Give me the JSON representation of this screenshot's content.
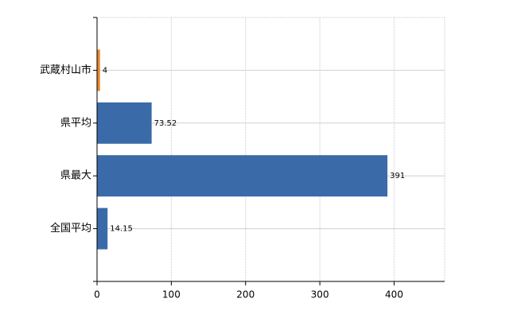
{
  "chart_data": {
    "type": "bar",
    "orientation": "horizontal",
    "categories": [
      "武蔵村山市",
      "県平均",
      "県最大",
      "全国平均"
    ],
    "values": [
      4,
      73.52,
      391,
      14.15
    ],
    "colors": [
      "#e8862f",
      "#3a6aa8",
      "#3a6aa8",
      "#3a6aa8"
    ],
    "xlim": [
      0,
      468
    ],
    "xticks": [
      0,
      100,
      200,
      300,
      400
    ],
    "grid": true
  }
}
